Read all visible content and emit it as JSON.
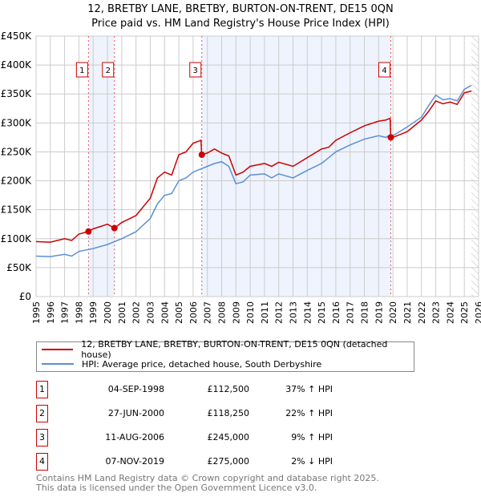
{
  "chart_data": {
    "type": "line",
    "title": "12, BRETBY LANE, BRETBY, BURTON-ON-TRENT, DE15 0QN",
    "subtitle": "Price paid vs. HM Land Registry's House Price Index (HPI)",
    "xlim": [
      1995,
      2026
    ],
    "ylim": [
      0,
      450000
    ],
    "x_ticks": [
      "1995",
      "1996",
      "1997",
      "1998",
      "1999",
      "2000",
      "2001",
      "2002",
      "2003",
      "2004",
      "2005",
      "2006",
      "2007",
      "2008",
      "2009",
      "2010",
      "2011",
      "2012",
      "2013",
      "2014",
      "2015",
      "2016",
      "2017",
      "2018",
      "2019",
      "2020",
      "2021",
      "2022",
      "2023",
      "2024",
      "2025",
      "2026"
    ],
    "y_ticks": [
      {
        "v": 0,
        "label": "£0"
      },
      {
        "v": 50000,
        "label": "£50K"
      },
      {
        "v": 100000,
        "label": "£100K"
      },
      {
        "v": 150000,
        "label": "£150K"
      },
      {
        "v": 200000,
        "label": "£200K"
      },
      {
        "v": 250000,
        "label": "£250K"
      },
      {
        "v": 300000,
        "label": "£300K"
      },
      {
        "v": 350000,
        "label": "£350K"
      },
      {
        "v": 400000,
        "label": "£400K"
      },
      {
        "v": 450000,
        "label": "£450K"
      }
    ],
    "grid": true,
    "series": [
      {
        "name": "12, BRETBY LANE, BRETBY, BURTON-ON-TRENT, DE15 0QN (detached house)",
        "color": "#cc0000",
        "x": [
          1995,
          1996,
          1997,
          1997.5,
          1998,
          1998.67,
          1999,
          2000,
          2000.49,
          2001,
          2002,
          2003,
          2003.5,
          2004,
          2004.5,
          2005,
          2005.5,
          2006,
          2006.55,
          2006.6,
          2007,
          2007.5,
          2008,
          2008.5,
          2009,
          2009.5,
          2010,
          2011,
          2011.5,
          2012,
          2013,
          2014,
          2015,
          2015.5,
          2016,
          2017,
          2018,
          2019,
          2019.5,
          2019.8,
          2019.85,
          2020,
          2021,
          2022,
          2022.5,
          2023,
          2023.5,
          2024,
          2024.5,
          2025,
          2025.5
        ],
        "y": [
          95000,
          94000,
          100000,
          97000,
          108000,
          112500,
          117000,
          125000,
          118250,
          128000,
          140000,
          170000,
          205000,
          215000,
          210000,
          245000,
          250000,
          265000,
          270000,
          245000,
          248000,
          255000,
          248000,
          243000,
          210000,
          215000,
          225000,
          230000,
          225000,
          232000,
          225000,
          240000,
          255000,
          258000,
          270000,
          283000,
          295000,
          303000,
          305000,
          308000,
          275000,
          275000,
          285000,
          305000,
          320000,
          338000,
          333000,
          336000,
          332000,
          352000,
          355000
        ]
      },
      {
        "name": "HPI: Average price, detached house, South Derbyshire",
        "color": "#5b8fd4",
        "x": [
          1995,
          1996,
          1997,
          1997.5,
          1998,
          1999,
          2000,
          2001,
          2002,
          2003,
          2003.5,
          2004,
          2004.5,
          2005,
          2005.5,
          2006,
          2006.5,
          2007,
          2007.5,
          2008,
          2008.5,
          2009,
          2009.5,
          2010,
          2011,
          2011.5,
          2012,
          2013,
          2014,
          2015,
          2015.5,
          2016,
          2017,
          2018,
          2019,
          2019.5,
          2019.85,
          2020,
          2021,
          2022,
          2022.5,
          2023,
          2023.5,
          2024,
          2024.5,
          2025,
          2025.5
        ],
        "y": [
          70000,
          69000,
          73000,
          70000,
          78000,
          83000,
          90000,
          100000,
          112000,
          135000,
          160000,
          175000,
          178000,
          200000,
          205000,
          215000,
          220000,
          225000,
          230000,
          233000,
          225000,
          195000,
          198000,
          210000,
          212000,
          205000,
          212000,
          205000,
          218000,
          230000,
          240000,
          250000,
          262000,
          272000,
          278000,
          275000,
          280000,
          278000,
          293000,
          310000,
          330000,
          348000,
          340000,
          342000,
          338000,
          358000,
          365000
        ]
      }
    ],
    "sales": [
      {
        "n": "1",
        "x": 1998.67,
        "price": 112500
      },
      {
        "n": "2",
        "x": 2000.49,
        "price": 118250
      },
      {
        "n": "3",
        "x": 2006.61,
        "price": 245000
      },
      {
        "n": "4",
        "x": 2019.85,
        "price": 275000
      }
    ],
    "shaded": [
      [
        1998.67,
        2000.49
      ],
      [
        2006.61,
        2019.85
      ]
    ],
    "forecast_from": 2025.5,
    "legend": "bottom"
  },
  "table": [
    {
      "n": "1",
      "date": "04-SEP-1998",
      "price": "£112,500",
      "pct": "37% ↑ HPI"
    },
    {
      "n": "2",
      "date": "27-JUN-2000",
      "price": "£118,250",
      "pct": "22% ↑ HPI"
    },
    {
      "n": "3",
      "date": "11-AUG-2006",
      "price": "£245,000",
      "pct": "9% ↑ HPI"
    },
    {
      "n": "4",
      "date": "07-NOV-2019",
      "price": "£275,000",
      "pct": "2% ↓ HPI"
    }
  ],
  "footer": [
    "Contains HM Land Registry data © Crown copyright and database right 2025.",
    "This data is licensed under the Open Government Licence v3.0."
  ]
}
